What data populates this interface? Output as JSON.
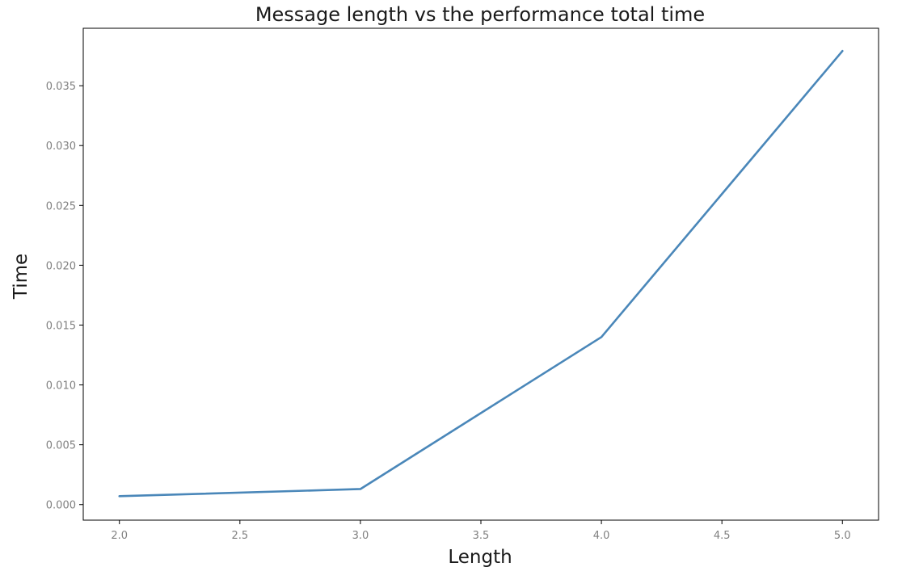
{
  "chart_data": {
    "type": "line",
    "title": "Message length vs the performance total time",
    "xlabel": "Length",
    "ylabel": "Time",
    "xlim": [
      1.85,
      5.15
    ],
    "ylim": [
      -0.0013,
      0.0398
    ],
    "x_ticks": [
      "2.0",
      "2.5",
      "3.0",
      "3.5",
      "4.0",
      "4.5",
      "5.0"
    ],
    "y_ticks": [
      "0.000",
      "0.005",
      "0.010",
      "0.015",
      "0.020",
      "0.025",
      "0.030",
      "0.035"
    ],
    "grid": false,
    "series": [
      {
        "x": [
          2,
          3,
          4,
          5
        ],
        "y": [
          0.0007,
          0.0013,
          0.014,
          0.0379
        ],
        "color": "#4a87b9"
      }
    ]
  }
}
